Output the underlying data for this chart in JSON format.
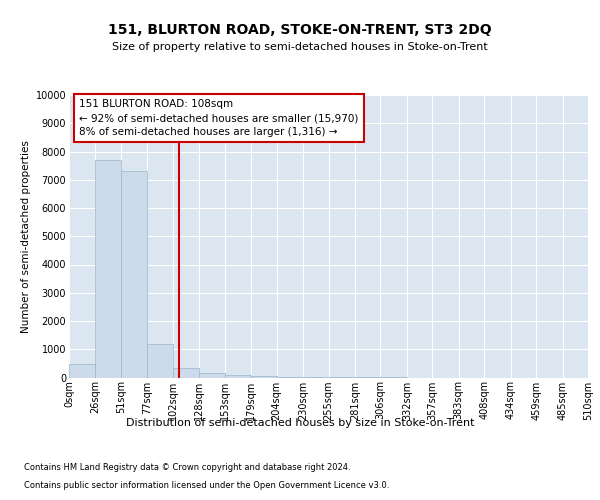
{
  "title": "151, BLURTON ROAD, STOKE-ON-TRENT, ST3 2DQ",
  "subtitle": "Size of property relative to semi-detached houses in Stoke-on-Trent",
  "xlabel": "Distribution of semi-detached houses by size in Stoke-on-Trent",
  "ylabel": "Number of semi-detached properties",
  "footnote1": "Contains HM Land Registry data © Crown copyright and database right 2024.",
  "footnote2": "Contains public sector information licensed under the Open Government Licence v3.0.",
  "property_size": 108,
  "property_label": "151 BLURTON ROAD: 108sqm",
  "pct_smaller": 92,
  "count_smaller": 15970,
  "pct_larger": 8,
  "count_larger": 1316,
  "bin_edges": [
    0,
    26,
    51,
    77,
    102,
    128,
    153,
    179,
    204,
    230,
    255,
    281,
    306,
    332,
    357,
    383,
    408,
    434,
    459,
    485,
    510
  ],
  "bin_labels": [
    "0sqm",
    "26sqm",
    "51sqm",
    "77sqm",
    "102sqm",
    "128sqm",
    "153sqm",
    "179sqm",
    "204sqm",
    "230sqm",
    "255sqm",
    "281sqm",
    "306sqm",
    "332sqm",
    "357sqm",
    "383sqm",
    "408sqm",
    "434sqm",
    "459sqm",
    "485sqm",
    "510sqm"
  ],
  "bar_heights": [
    490,
    7700,
    7300,
    1200,
    350,
    150,
    100,
    70,
    30,
    10,
    5,
    2,
    1,
    0,
    0,
    0,
    0,
    0,
    0,
    0
  ],
  "bar_color": "#cddaea",
  "bar_edge_color": "#9ab5cb",
  "vline_x": 108,
  "vline_color": "#cc0000",
  "annotation_box_color": "#cc0000",
  "ylim": [
    0,
    10000
  ],
  "yticks": [
    0,
    1000,
    2000,
    3000,
    4000,
    5000,
    6000,
    7000,
    8000,
    9000,
    10000
  ],
  "bg_color": "#dce6f0",
  "title_fontsize": 10,
  "subtitle_fontsize": 8,
  "ylabel_fontsize": 7.5,
  "xlabel_fontsize": 8,
  "tick_fontsize": 7,
  "footnote_fontsize": 6,
  "annot_fontsize": 7.5
}
